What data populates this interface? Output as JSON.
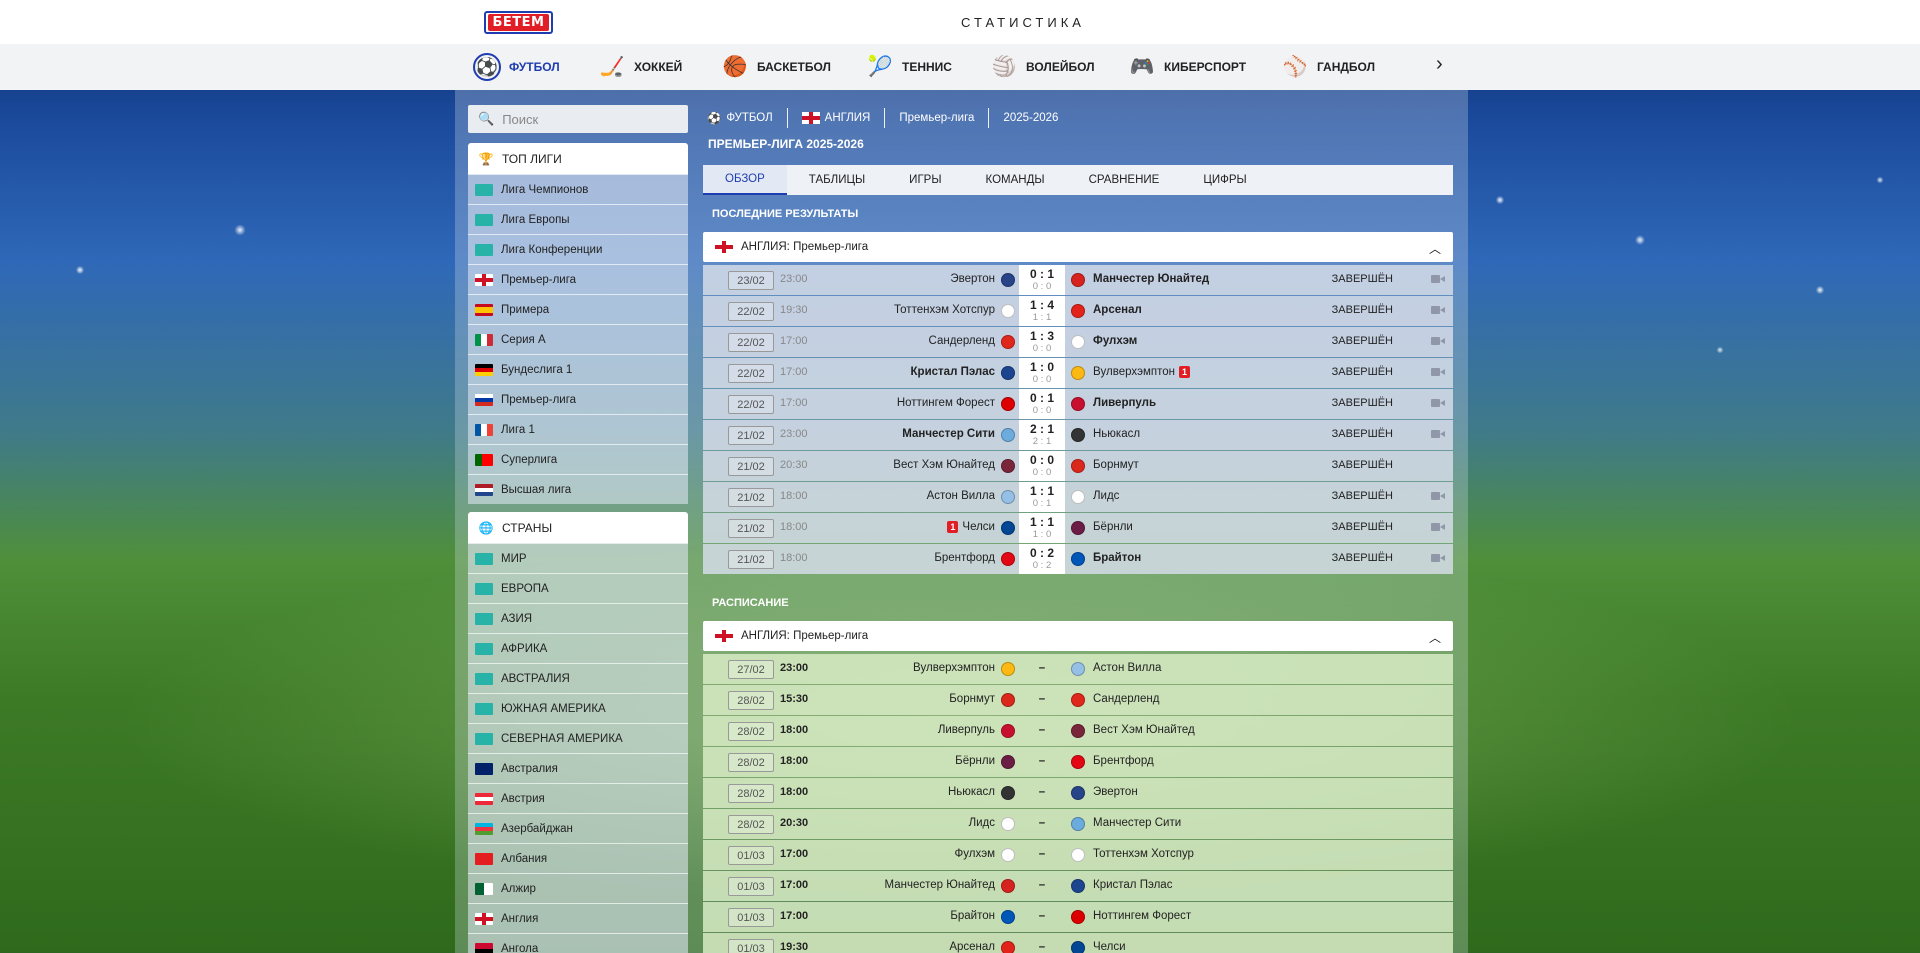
{
  "header": {
    "logo": "БЕТЕМ",
    "title": "СТАТИСТИКА"
  },
  "sports": [
    {
      "label": "ФУТБОЛ",
      "icon": "soccer-ball-icon",
      "glyph": "⚽",
      "active": true
    },
    {
      "label": "ХОККЕЙ",
      "icon": "hockey-puck-icon",
      "glyph": "🏒",
      "active": false
    },
    {
      "label": "БАСКЕТБОЛ",
      "icon": "basketball-icon",
      "glyph": "🏀",
      "active": false
    },
    {
      "label": "ТЕННИС",
      "icon": "tennis-ball-icon",
      "glyph": "🎾",
      "active": false
    },
    {
      "label": "ВОЛЕЙБОЛ",
      "icon": "volleyball-icon",
      "glyph": "🏐",
      "active": false
    },
    {
      "label": "КИБЕРСПОРТ",
      "icon": "gamepad-icon",
      "glyph": "🎮",
      "active": false
    },
    {
      "label": "ГАНДБОЛ",
      "icon": "handball-icon",
      "glyph": "⚾",
      "active": false
    }
  ],
  "sidebar": {
    "search_placeholder": "Поиск",
    "top_leagues_title": "ТОП ЛИГИ",
    "top_leagues": [
      {
        "label": "Лига Чемпионов",
        "flag": "intl"
      },
      {
        "label": "Лига Европы",
        "flag": "intl"
      },
      {
        "label": "Лига Конференции",
        "flag": "intl"
      },
      {
        "label": "Премьер-лига",
        "flag": "eng"
      },
      {
        "label": "Примера",
        "flag": "esp"
      },
      {
        "label": "Серия А",
        "flag": "ita"
      },
      {
        "label": "Бундеслига 1",
        "flag": "ger"
      },
      {
        "label": "Премьер-лига",
        "flag": "rus"
      },
      {
        "label": "Лига 1",
        "flag": "fra"
      },
      {
        "label": "Суперлига",
        "flag": "por"
      },
      {
        "label": "Высшая лига",
        "flag": "ned"
      }
    ],
    "countries_title": "СТРАНЫ",
    "countries": [
      {
        "label": "МИР",
        "flag": "intl"
      },
      {
        "label": "ЕВРОПА",
        "flag": "intl"
      },
      {
        "label": "АЗИЯ",
        "flag": "intl"
      },
      {
        "label": "АФРИКА",
        "flag": "intl"
      },
      {
        "label": "АВСТРАЛИЯ",
        "flag": "intl"
      },
      {
        "label": "ЮЖНАЯ АМЕРИКА",
        "flag": "intl"
      },
      {
        "label": "СЕВЕРНАЯ АМЕРИКА",
        "flag": "intl"
      },
      {
        "label": "Австралия",
        "flag": "aus"
      },
      {
        "label": "Австрия",
        "flag": "aut"
      },
      {
        "label": "Азербайджан",
        "flag": "aze"
      },
      {
        "label": "Албания",
        "flag": "alb"
      },
      {
        "label": "Алжир",
        "flag": "alg"
      },
      {
        "label": "Англия",
        "flag": "eng"
      },
      {
        "label": "Ангола",
        "flag": "ang"
      }
    ]
  },
  "breadcrumbs": [
    {
      "label": "ФУТБОЛ",
      "icon": "soccer-ball-icon",
      "glyph": "⚽"
    },
    {
      "label": "АНГЛИЯ",
      "icon": "england-flag-icon",
      "glyph": ""
    },
    {
      "label": "Премьер-лига"
    },
    {
      "label": "2025-2026"
    }
  ],
  "league_title": "ПРЕМЬЕР-ЛИГА 2025-2026",
  "tabs": [
    "ОБЗОР",
    "ТАБЛИЦЫ",
    "ИГРЫ",
    "КОМАНДЫ",
    "СРАВНЕНИЕ",
    "ЦИФРЫ"
  ],
  "active_tab": "ОБЗОР",
  "results": {
    "title": "ПОСЛЕДНИЕ РЕЗУЛЬТАТЫ",
    "group": "АНГЛИЯ: Премьер-лига",
    "matches": [
      {
        "date": "23/02",
        "time": "23:00",
        "home": "Эвертон",
        "away": "Манчестер Юнайтед",
        "score": "0 : 1",
        "half": "0 : 0",
        "winner": "away",
        "status": "ЗАВЕРШЁН",
        "home_red": 0,
        "away_red": 0,
        "video": true,
        "hc": "#274488",
        "ac": "#d6231f"
      },
      {
        "date": "22/02",
        "time": "19:30",
        "home": "Тоттенхэм Хотспур",
        "away": "Арсенал",
        "score": "1 : 4",
        "half": "1 : 1",
        "winner": "away",
        "status": "ЗАВЕРШЁН",
        "home_red": 0,
        "away_red": 0,
        "video": true,
        "hc": "#ffffff",
        "ac": "#e2231a"
      },
      {
        "date": "22/02",
        "time": "17:00",
        "home": "Сандерленд",
        "away": "Фулхэм",
        "score": "1 : 3",
        "half": "0 : 0",
        "winner": "away",
        "status": "ЗАВЕРШЁН",
        "home_red": 0,
        "away_red": 0,
        "video": true,
        "hc": "#e0271c",
        "ac": "#ffffff"
      },
      {
        "date": "22/02",
        "time": "17:00",
        "home": "Кристал Пэлас",
        "away": "Вулверхэмптон",
        "score": "1 : 0",
        "half": "0 : 0",
        "winner": "home",
        "status": "ЗАВЕРШЁН",
        "home_red": 0,
        "away_red": 1,
        "video": true,
        "hc": "#1b458f",
        "ac": "#fdb913"
      },
      {
        "date": "22/02",
        "time": "17:00",
        "home": "Ноттингем Форест",
        "away": "Ливерпуль",
        "score": "0 : 1",
        "half": "0 : 0",
        "winner": "away",
        "status": "ЗАВЕРШЁН",
        "home_red": 0,
        "away_red": 0,
        "video": true,
        "hc": "#dd0000",
        "ac": "#c8102e"
      },
      {
        "date": "21/02",
        "time": "23:00",
        "home": "Манчестер Сити",
        "away": "Ньюкасл",
        "score": "2 : 1",
        "half": "2 : 1",
        "winner": "home",
        "status": "ЗАВЕРШЁН",
        "home_red": 0,
        "away_red": 0,
        "video": true,
        "hc": "#6cabdd",
        "ac": "#333333"
      },
      {
        "date": "21/02",
        "time": "20:30",
        "home": "Вест Хэм Юнайтед",
        "away": "Борнмут",
        "score": "0 : 0",
        "half": "0 : 0",
        "winner": "none",
        "status": "ЗАВЕРШЁН",
        "home_red": 0,
        "away_red": 0,
        "video": false,
        "hc": "#7a263a",
        "ac": "#da291c"
      },
      {
        "date": "21/02",
        "time": "18:00",
        "home": "Астон Вилла",
        "away": "Лидс",
        "score": "1 : 1",
        "half": "0 : 1",
        "winner": "none",
        "status": "ЗАВЕРШЁН",
        "home_red": 0,
        "away_red": 0,
        "video": true,
        "hc": "#95bfe5",
        "ac": "#ffffff"
      },
      {
        "date": "21/02",
        "time": "18:00",
        "home": "Челси",
        "away": "Бёрнли",
        "score": "1 : 1",
        "half": "1 : 0",
        "winner": "none",
        "status": "ЗАВЕРШЁН",
        "home_red": 1,
        "away_red": 0,
        "video": true,
        "hc": "#034694",
        "ac": "#6c1d45"
      },
      {
        "date": "21/02",
        "time": "18:00",
        "home": "Брентфорд",
        "away": "Брайтон",
        "score": "0 : 2",
        "half": "0 : 2",
        "winner": "away",
        "status": "ЗАВЕРШЁН",
        "home_red": 0,
        "away_red": 0,
        "video": true,
        "hc": "#e30613",
        "ac": "#0057b8"
      }
    ]
  },
  "schedule": {
    "title": "РАСПИСАНИЕ",
    "group": "АНГЛИЯ: Премьер-лига",
    "matches": [
      {
        "date": "27/02",
        "time": "23:00",
        "home": "Вулверхэмптон",
        "away": "Астон Вилла",
        "hc": "#fdb913",
        "ac": "#95bfe5"
      },
      {
        "date": "28/02",
        "time": "15:30",
        "home": "Борнмут",
        "away": "Сандерленд",
        "hc": "#da291c",
        "ac": "#e0271c"
      },
      {
        "date": "28/02",
        "time": "18:00",
        "home": "Ливерпуль",
        "away": "Вест Хэм Юнайтед",
        "hc": "#c8102e",
        "ac": "#7a263a"
      },
      {
        "date": "28/02",
        "time": "18:00",
        "home": "Бёрнли",
        "away": "Брентфорд",
        "hc": "#6c1d45",
        "ac": "#e30613"
      },
      {
        "date": "28/02",
        "time": "18:00",
        "home": "Ньюкасл",
        "away": "Эвертон",
        "hc": "#333333",
        "ac": "#274488"
      },
      {
        "date": "28/02",
        "time": "20:30",
        "home": "Лидс",
        "away": "Манчестер Сити",
        "hc": "#ffffff",
        "ac": "#6cabdd"
      },
      {
        "date": "01/03",
        "time": "17:00",
        "home": "Фулхэм",
        "away": "Тоттенхэм Хотспур",
        "hc": "#ffffff",
        "ac": "#ffffff"
      },
      {
        "date": "01/03",
        "time": "17:00",
        "home": "Манчестер Юнайтед",
        "away": "Кристал Пэлас",
        "hc": "#d6231f",
        "ac": "#1b458f"
      },
      {
        "date": "01/03",
        "time": "17:00",
        "home": "Брайтон",
        "away": "Ноттингем Форест",
        "hc": "#0057b8",
        "ac": "#dd0000"
      },
      {
        "date": "01/03",
        "time": "19:30",
        "home": "Арсенал",
        "away": "Челси",
        "hc": "#e2231a",
        "ac": "#034694"
      }
    ]
  },
  "dash": "–",
  "colors": {
    "accent": "#1e3db0",
    "brand_red": "#e11d25"
  }
}
